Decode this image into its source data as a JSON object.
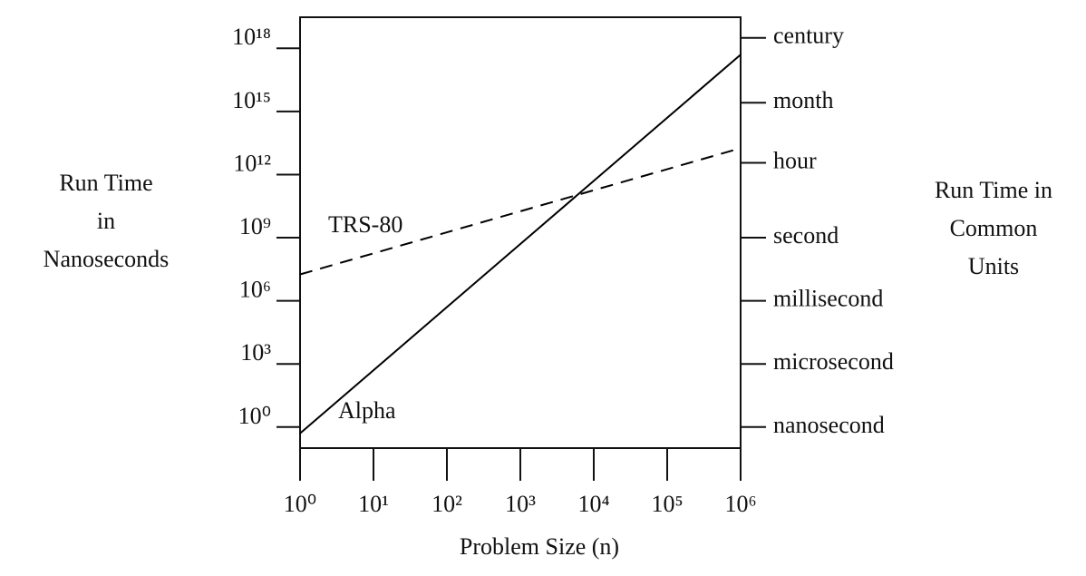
{
  "chart_data": {
    "type": "line",
    "ylabel": [
      "Run Time",
      "in",
      "Nanoseconds"
    ],
    "y2label": [
      "Run Time in",
      "Common",
      "Units"
    ],
    "xlabel": "Problem Size (n)",
    "log_x": true,
    "log_y": true,
    "x": [
      1,
      1000000
    ],
    "series": [
      {
        "name": "TRS-80",
        "color": "#000000",
        "dashed": true,
        "values": [
          18000000,
          18000000000000
        ]
      },
      {
        "name": "Alpha",
        "color": "#000000",
        "dashed": false,
        "values": [
          0.5,
          500000000000000000
        ]
      }
    ],
    "xlim": [
      1,
      1000000
    ],
    "xticks": [
      {
        "value": 1,
        "label": "10⁰"
      },
      {
        "value": 10,
        "label": "10¹"
      },
      {
        "value": 100,
        "label": "10²"
      },
      {
        "value": 1000,
        "label": "10³"
      },
      {
        "value": 10000,
        "label": "10⁴"
      },
      {
        "value": 100000,
        "label": "10⁵"
      },
      {
        "value": 1000000,
        "label": "10⁶"
      }
    ],
    "ylim": [
      0.1,
      30000000000000000000
    ],
    "yticks": [
      {
        "value": 1,
        "label": "10⁰"
      },
      {
        "value": 1000,
        "label": "10³"
      },
      {
        "value": 1000000,
        "label": "10⁶"
      },
      {
        "value": 1000000000,
        "label": "10⁹"
      },
      {
        "value": 1000000000000,
        "label": "10¹²"
      },
      {
        "value": 1000000000000000,
        "label": "10¹⁵"
      },
      {
        "value": 1000000000000000000,
        "label": "10¹⁸"
      }
    ],
    "y2lim": [
      0.1,
      30000000000000000000
    ],
    "y2ticks": [
      {
        "value": 1,
        "label": "nanosecond"
      },
      {
        "value": 1000,
        "label": "microsecond"
      },
      {
        "value": 1000000,
        "label": "millisecond"
      },
      {
        "value": 1000000000,
        "label": "second"
      },
      {
        "value": 3600000000000,
        "label": "hour"
      },
      {
        "value": 2600000000000000,
        "label": "month"
      },
      {
        "value": 3150000000000000000,
        "label": "century"
      }
    ]
  }
}
